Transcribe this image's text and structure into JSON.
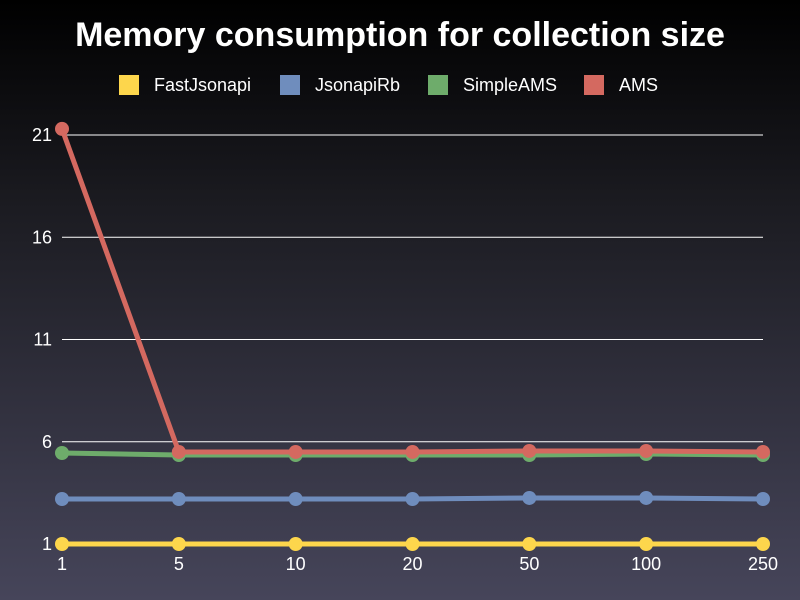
{
  "chart_data": {
    "type": "line",
    "title": "Memory consumption for collection size",
    "xlabel": "",
    "ylabel": "",
    "categories": [
      "1",
      "5",
      "10",
      "20",
      "50",
      "100",
      "250"
    ],
    "yticks": [
      "1",
      "6",
      "11",
      "16",
      "21"
    ],
    "ylim": [
      1,
      21
    ],
    "grid": true,
    "legend_position": "top",
    "series": [
      {
        "name": "FastJsonapi",
        "color": "#fdd64c",
        "values": [
          1.0,
          1.0,
          1.0,
          1.0,
          1.0,
          1.0,
          1.0
        ]
      },
      {
        "name": "JsonapiRb",
        "color": "#6f8dbd",
        "values": [
          3.2,
          3.2,
          3.2,
          3.2,
          3.25,
          3.25,
          3.2
        ]
      },
      {
        "name": "SimpleAMS",
        "color": "#6eac6b",
        "values": [
          5.45,
          5.35,
          5.35,
          5.35,
          5.35,
          5.4,
          5.35
        ]
      },
      {
        "name": "AMS",
        "color": "#d46960",
        "values": [
          21.3,
          5.5,
          5.5,
          5.5,
          5.55,
          5.55,
          5.5
        ]
      }
    ]
  }
}
